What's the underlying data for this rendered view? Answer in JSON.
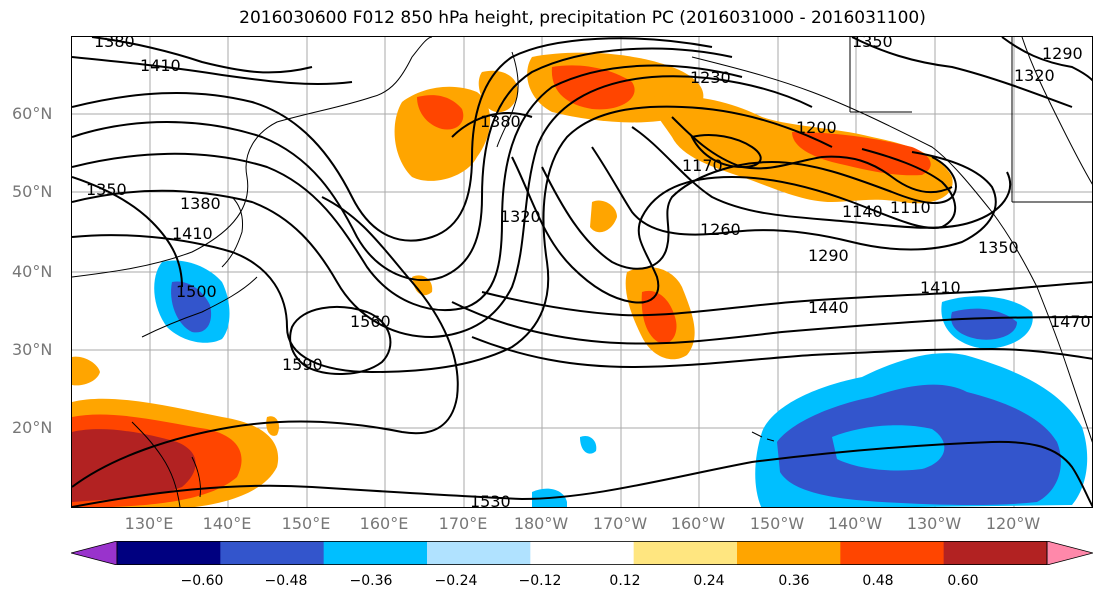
{
  "title": "2016030600 F012 850 hPa height, precipitation PC (2016031000 - 2016031100)",
  "lat_labels": [
    "60°N",
    "50°N",
    "40°N",
    "30°N",
    "20°N"
  ],
  "lon_labels": [
    "130°E",
    "140°E",
    "150°E",
    "160°E",
    "170°E",
    "180°W",
    "170°W",
    "160°W",
    "150°W",
    "140°W",
    "130°W",
    "120°W"
  ],
  "contour_labels": [
    "1380",
    "1410",
    "1350",
    "1380",
    "1410",
    "1500",
    "1590",
    "1560",
    "1530",
    "1320",
    "1380",
    "1230",
    "1200",
    "1170",
    "1140",
    "1110",
    "1260",
    "1290",
    "1350",
    "1440",
    "1410",
    "1470",
    "1290",
    "1320",
    "1350"
  ],
  "colorbar": {
    "ticks": [
      "−0.60",
      "−0.48",
      "−0.36",
      "−0.24",
      "−0.12",
      "0.12",
      "0.24",
      "0.36",
      "0.48",
      "0.60"
    ],
    "colors": [
      "#9933cc",
      "#000080",
      "#3355cc",
      "#00bfff",
      "#b0e2ff",
      "#ffffff",
      "#ffe680",
      "#ffa500",
      "#ff4500",
      "#b22222",
      "#ff88aa"
    ]
  }
}
